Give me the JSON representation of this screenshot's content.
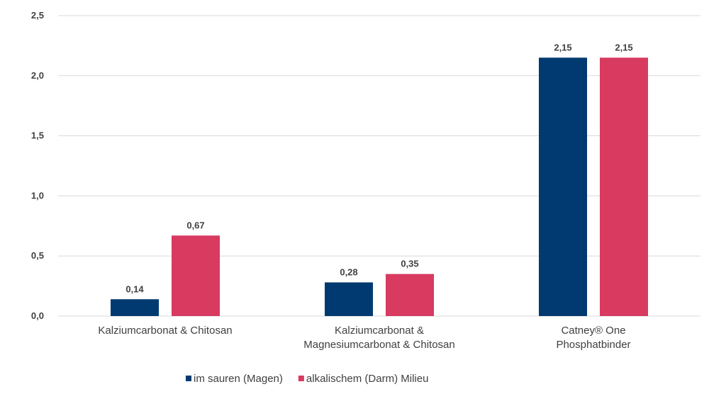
{
  "chart_data": {
    "type": "bar",
    "categories": [
      [
        "Kalziumcarbonat & Chitosan"
      ],
      [
        "Kalziumcarbonat &",
        "Magnesiumcarbonat & Chitosan"
      ],
      [
        "Catney® One",
        "Phosphatbinder"
      ]
    ],
    "series": [
      {
        "name": "im sauren (Magen)",
        "color": "#003A70",
        "values": [
          0.14,
          0.28,
          2.15
        ],
        "labels": [
          "0,14",
          "0,28",
          "2,15"
        ]
      },
      {
        "name": "alkalischem (Darm) Milieu",
        "color": "#D83A60",
        "values": [
          0.67,
          0.35,
          2.15
        ],
        "labels": [
          "0,67",
          "0,35",
          "2,15"
        ]
      }
    ],
    "yticks": [
      0,
      0.5,
      1.0,
      1.5,
      2.0,
      2.5
    ],
    "ytick_labels": [
      "0,0",
      "0,5",
      "1,0",
      "1,5",
      "2,0",
      "2,5"
    ],
    "ylim": [
      0,
      2.5
    ],
    "grid": true,
    "legend_position": "bottom"
  }
}
